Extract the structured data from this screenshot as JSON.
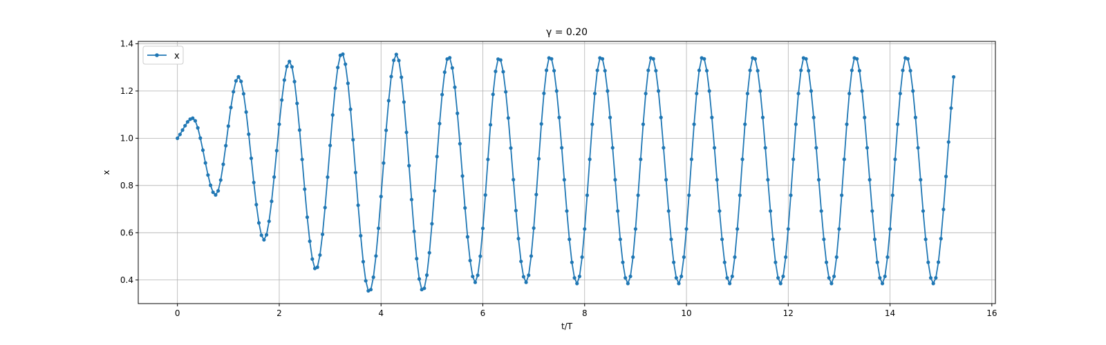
{
  "chart_data": {
    "type": "line",
    "title": "γ = 0.20",
    "xlabel": "t/T",
    "ylabel": "x",
    "xlim": [
      -0.77,
      16.07
    ],
    "ylim": [
      0.3,
      1.41
    ],
    "xticks": [
      0,
      2,
      4,
      6,
      8,
      10,
      12,
      14,
      16
    ],
    "yticks": [
      0.4,
      0.6,
      0.8,
      1.0,
      1.2,
      1.4
    ],
    "xtick_labels": [
      "0",
      "2",
      "4",
      "6",
      "8",
      "10",
      "12",
      "14",
      "16"
    ],
    "ytick_labels": [
      "0.4",
      "0.6",
      "0.8",
      "1.0",
      "1.2",
      "1.4"
    ],
    "grid": true,
    "legend": "top-left",
    "marker": "circle",
    "color": "#1f77b4",
    "series": [
      {
        "name": "x",
        "points": [
          [
            0.0,
            1.0
          ],
          [
            0.3,
            1.085
          ],
          [
            0.75,
            0.76
          ],
          [
            1.2,
            1.26
          ],
          [
            1.7,
            0.57
          ],
          [
            2.2,
            1.325
          ],
          [
            2.72,
            0.445
          ],
          [
            3.23,
            1.36
          ],
          [
            3.77,
            0.35
          ],
          [
            4.3,
            1.355
          ],
          [
            4.82,
            0.355
          ],
          [
            5.33,
            1.345
          ],
          [
            5.85,
            0.39
          ],
          [
            6.32,
            1.34
          ],
          [
            6.85,
            0.39
          ],
          [
            7.32,
            1.345
          ],
          [
            7.85,
            0.385
          ],
          [
            8.32,
            1.345
          ],
          [
            8.85,
            0.385
          ],
          [
            9.32,
            1.345
          ],
          [
            9.85,
            0.385
          ],
          [
            10.32,
            1.345
          ],
          [
            10.85,
            0.385
          ],
          [
            11.32,
            1.345
          ],
          [
            11.85,
            0.385
          ],
          [
            12.32,
            1.345
          ],
          [
            12.85,
            0.385
          ],
          [
            13.32,
            1.345
          ],
          [
            13.85,
            0.385
          ],
          [
            14.32,
            1.345
          ],
          [
            14.85,
            0.385
          ],
          [
            15.28,
            1.33
          ]
        ]
      }
    ]
  }
}
